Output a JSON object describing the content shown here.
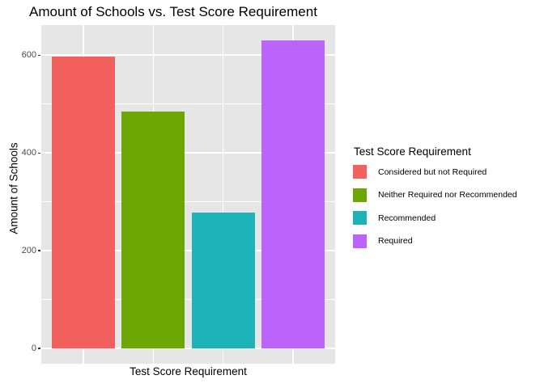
{
  "chart_data": {
    "type": "bar",
    "title": "Amount of Schools vs. Test Score Requirement",
    "xlabel": "Test Score Requirement",
    "ylabel": "Amount of Schools",
    "categories": [
      "Considered but not Required",
      "Neither Required nor Recommended",
      "Recommended",
      "Required"
    ],
    "values": [
      597,
      485,
      278,
      630
    ],
    "colors": [
      "#f2615e",
      "#6ca706",
      "#1cb2b8",
      "#bb63fb"
    ],
    "legend": {
      "title": "Test Score Requirement",
      "position": "right"
    },
    "y_axis": {
      "ticks_major": [
        0,
        200,
        400,
        600
      ],
      "ticks_minor": [
        100,
        300,
        500
      ],
      "range": [
        -31.5,
        661.5
      ]
    },
    "x_axis": {
      "tick_labels_shown": false
    },
    "panel_background": "#e6e6e6",
    "gridline_color": "#ffffff",
    "tick_label_color": "#4d4d4d"
  }
}
